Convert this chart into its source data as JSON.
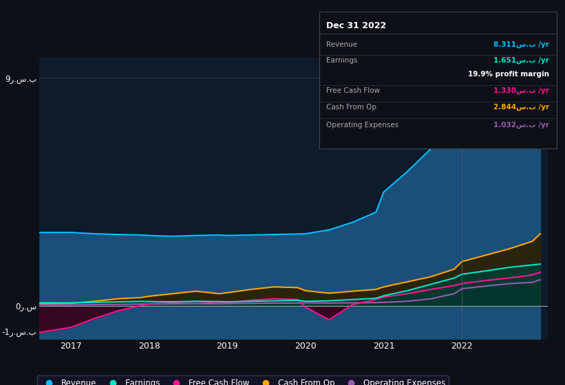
{
  "bg_color": "#0d1117",
  "plot_bg_color": "#0d1b2a",
  "yticks": [
    -1,
    0,
    9
  ],
  "ytick_labels": [
    "-1ر.س.ب",
    "0ر.س",
    "9ر.س.ب"
  ],
  "xlim": [
    2016.6,
    2023.1
  ],
  "ylim": [
    -1.3,
    9.8
  ],
  "xticks": [
    2017,
    2018,
    2019,
    2020,
    2021,
    2022
  ],
  "series": {
    "Revenue": {
      "color": "#00bfff",
      "fill_color": "#1a4f7a",
      "x": [
        2016.6,
        2017.0,
        2017.3,
        2017.6,
        2017.9,
        2018.0,
        2018.3,
        2018.6,
        2018.9,
        2019.0,
        2019.3,
        2019.6,
        2019.9,
        2020.0,
        2020.3,
        2020.6,
        2020.9,
        2021.0,
        2021.3,
        2021.6,
        2021.9,
        2022.0,
        2022.3,
        2022.6,
        2022.9,
        2023.0
      ],
      "y": [
        2.9,
        2.9,
        2.85,
        2.82,
        2.8,
        2.78,
        2.75,
        2.78,
        2.8,
        2.78,
        2.8,
        2.82,
        2.84,
        2.85,
        3.0,
        3.3,
        3.7,
        4.5,
        5.3,
        6.2,
        7.0,
        7.4,
        7.8,
        8.1,
        8.25,
        8.31
      ]
    },
    "Earnings": {
      "color": "#00e5cc",
      "fill_color": "#003d30",
      "x": [
        2016.6,
        2017.0,
        2017.3,
        2017.6,
        2017.9,
        2018.0,
        2018.3,
        2018.6,
        2018.9,
        2019.0,
        2019.3,
        2019.6,
        2019.9,
        2020.0,
        2020.3,
        2020.6,
        2020.9,
        2021.0,
        2021.3,
        2021.6,
        2021.9,
        2022.0,
        2022.3,
        2022.6,
        2022.9,
        2023.0
      ],
      "y": [
        0.12,
        0.12,
        0.14,
        0.16,
        0.18,
        0.17,
        0.16,
        0.18,
        0.17,
        0.16,
        0.18,
        0.2,
        0.22,
        0.18,
        0.2,
        0.25,
        0.3,
        0.4,
        0.6,
        0.85,
        1.1,
        1.25,
        1.38,
        1.52,
        1.62,
        1.651
      ]
    },
    "Free Cash Flow": {
      "color": "#ff1493",
      "fill_color": "#3a0018",
      "x": [
        2016.6,
        2017.0,
        2017.3,
        2017.6,
        2017.9,
        2018.0,
        2018.3,
        2018.6,
        2018.9,
        2019.0,
        2019.3,
        2019.6,
        2019.9,
        2020.0,
        2020.3,
        2020.6,
        2020.9,
        2021.0,
        2021.3,
        2021.6,
        2021.9,
        2022.0,
        2022.3,
        2022.6,
        2022.9,
        2023.0
      ],
      "y": [
        -1.05,
        -0.85,
        -0.5,
        -0.2,
        0.02,
        0.08,
        0.12,
        0.18,
        0.1,
        0.12,
        0.22,
        0.28,
        0.25,
        -0.05,
        -0.55,
        0.05,
        0.25,
        0.35,
        0.48,
        0.65,
        0.8,
        0.88,
        1.0,
        1.1,
        1.22,
        1.33
      ]
    },
    "Cash From Op": {
      "color": "#ffa500",
      "fill_color": "#2d2000",
      "x": [
        2016.6,
        2017.0,
        2017.3,
        2017.6,
        2017.9,
        2018.0,
        2018.3,
        2018.6,
        2018.9,
        2019.0,
        2019.3,
        2019.6,
        2019.9,
        2020.0,
        2020.3,
        2020.6,
        2020.9,
        2021.0,
        2021.3,
        2021.6,
        2021.9,
        2022.0,
        2022.3,
        2022.6,
        2022.9,
        2023.0
      ],
      "y": [
        0.08,
        0.1,
        0.18,
        0.28,
        0.33,
        0.38,
        0.48,
        0.58,
        0.48,
        0.52,
        0.65,
        0.75,
        0.72,
        0.6,
        0.5,
        0.58,
        0.65,
        0.75,
        0.95,
        1.15,
        1.45,
        1.75,
        2.0,
        2.25,
        2.55,
        2.844
      ]
    },
    "Operating Expenses": {
      "color": "#9b59b6",
      "fill_color": "#25104a",
      "x": [
        2016.6,
        2017.0,
        2017.3,
        2017.6,
        2017.9,
        2018.0,
        2018.3,
        2018.6,
        2018.9,
        2019.0,
        2019.3,
        2019.6,
        2019.9,
        2020.0,
        2020.3,
        2020.6,
        2020.9,
        2021.0,
        2021.3,
        2021.6,
        2021.9,
        2022.0,
        2022.3,
        2022.6,
        2022.9,
        2023.0
      ],
      "y": [
        0.04,
        0.04,
        0.05,
        0.06,
        0.07,
        0.07,
        0.08,
        0.09,
        0.08,
        0.09,
        0.1,
        0.11,
        0.11,
        0.12,
        0.11,
        0.12,
        0.13,
        0.14,
        0.18,
        0.28,
        0.48,
        0.68,
        0.78,
        0.88,
        0.93,
        1.032
      ]
    }
  },
  "info_box": {
    "title": "Dec 31 2022",
    "rows": [
      {
        "label": "Revenue",
        "value": "8.311س.ب /yr",
        "value_color": "#00bfff",
        "separator": true
      },
      {
        "label": "Earnings",
        "value": "1.651س.ب /yr",
        "value_color": "#00e5cc",
        "separator": false
      },
      {
        "label": "",
        "value": "19.9% profit margin",
        "value_color": "#ffffff",
        "separator": true
      },
      {
        "label": "Free Cash Flow",
        "value": "1.330س.ب /yr",
        "value_color": "#ff1493",
        "separator": true
      },
      {
        "label": "Cash From Op",
        "value": "2.844س.ب /yr",
        "value_color": "#ffa500",
        "separator": true
      },
      {
        "label": "Operating Expenses",
        "value": "1.032س.ب /yr",
        "value_color": "#9b59b6",
        "separator": false
      }
    ]
  },
  "legend": [
    {
      "label": "Revenue",
      "color": "#00bfff"
    },
    {
      "label": "Earnings",
      "color": "#00e5cc"
    },
    {
      "label": "Free Cash Flow",
      "color": "#ff1493"
    },
    {
      "label": "Cash From Op",
      "color": "#ffa500"
    },
    {
      "label": "Operating Expenses",
      "color": "#9b59b6"
    }
  ]
}
